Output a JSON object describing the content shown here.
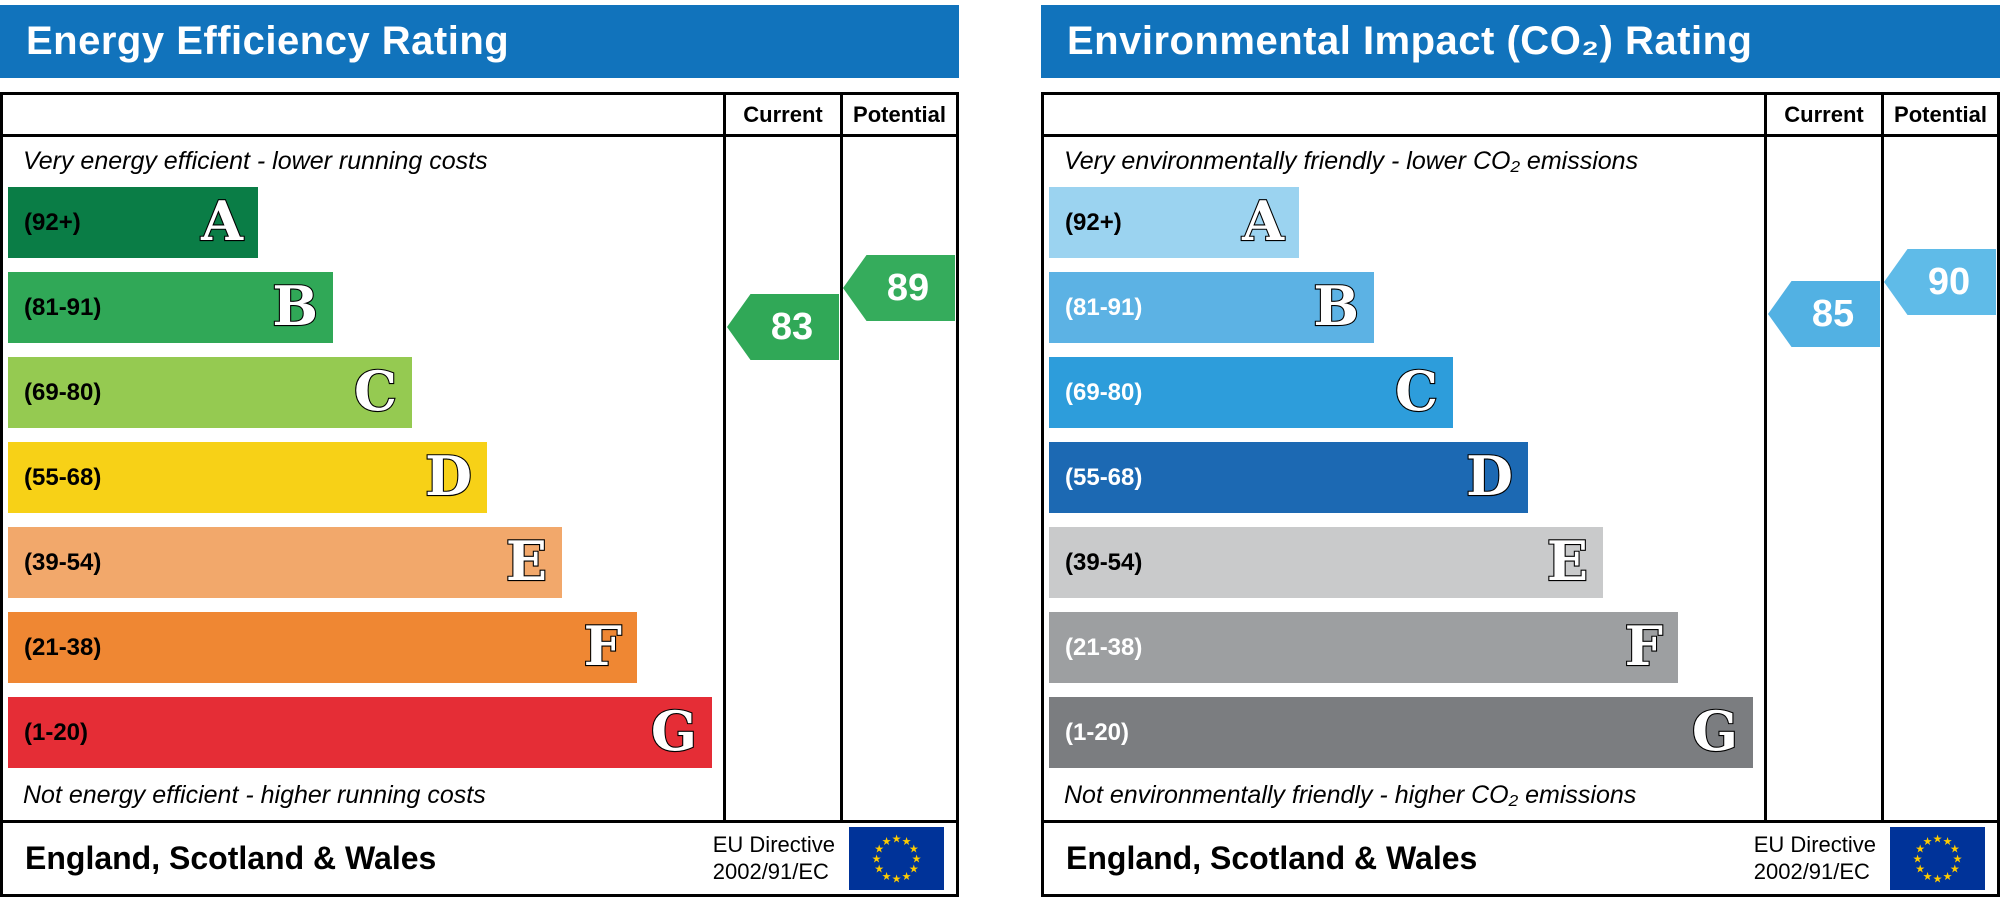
{
  "chart_data": [
    {
      "type": "bar",
      "title": "Energy Efficiency Rating",
      "columns": {
        "current": "Current",
        "potential": "Potential"
      },
      "top_note": "Very energy efficient - lower running costs",
      "bottom_note": "Not energy efficient - higher running costs",
      "footer_region": "England, Scotland & Wales",
      "footer_directive": [
        "EU Directive",
        "2002/91/EC"
      ],
      "header_color": "#1173bc",
      "bands": [
        {
          "letter": "A",
          "range_label": "(92+)",
          "lo": 92,
          "hi": 100,
          "color": "#0a7d46",
          "label_color": "#000000",
          "width_pct": 35
        },
        {
          "letter": "B",
          "range_label": "(81-91)",
          "lo": 81,
          "hi": 91,
          "color": "#30a857",
          "label_color": "#000000",
          "width_pct": 45.5
        },
        {
          "letter": "C",
          "range_label": "(69-80)",
          "lo": 69,
          "hi": 80,
          "color": "#95ca51",
          "label_color": "#000000",
          "width_pct": 56.5
        },
        {
          "letter": "D",
          "range_label": "(55-68)",
          "lo": 55,
          "hi": 68,
          "color": "#f7d117",
          "label_color": "#000000",
          "width_pct": 67
        },
        {
          "letter": "E",
          "range_label": "(39-54)",
          "lo": 39,
          "hi": 54,
          "color": "#f2a86b",
          "label_color": "#000000",
          "width_pct": 77.5
        },
        {
          "letter": "F",
          "range_label": "(21-38)",
          "lo": 21,
          "hi": 38,
          "color": "#ef8733",
          "label_color": "#000000",
          "width_pct": 88
        },
        {
          "letter": "G",
          "range_label": "(1-20)",
          "lo": 1,
          "hi": 20,
          "color": "#e52d36",
          "label_color": "#000000",
          "width_pct": 98.5
        }
      ],
      "current": {
        "value": 83,
        "band": "B",
        "color": "#30a857"
      },
      "potential": {
        "value": 89,
        "band": "B",
        "color": "#35ac5c"
      }
    },
    {
      "type": "bar",
      "title": "Environmental Impact (CO₂) Rating",
      "columns": {
        "current": "Current",
        "potential": "Potential"
      },
      "top_note": "Very environmentally friendly - lower CO₂ emissions",
      "bottom_note": "Not environmentally friendly - higher CO₂ emissions",
      "footer_region": "England, Scotland & Wales",
      "footer_directive": [
        "EU Directive",
        "2002/91/EC"
      ],
      "header_color": "#1173bc",
      "bands": [
        {
          "letter": "A",
          "range_label": "(92+)",
          "lo": 92,
          "hi": 100,
          "color": "#9bd3f0",
          "label_color": "#000000",
          "width_pct": 35
        },
        {
          "letter": "B",
          "range_label": "(81-91)",
          "lo": 81,
          "hi": 91,
          "color": "#5cb2e4",
          "label_color": "#ffffff",
          "width_pct": 45.5
        },
        {
          "letter": "C",
          "range_label": "(69-80)",
          "lo": 69,
          "hi": 80,
          "color": "#2d9ddb",
          "label_color": "#ffffff",
          "width_pct": 56.5
        },
        {
          "letter": "D",
          "range_label": "(55-68)",
          "lo": 55,
          "hi": 68,
          "color": "#1c69b3",
          "label_color": "#ffffff",
          "width_pct": 67
        },
        {
          "letter": "E",
          "range_label": "(39-54)",
          "lo": 39,
          "hi": 54,
          "color": "#c9cacb",
          "label_color": "#000000",
          "width_pct": 77.5
        },
        {
          "letter": "F",
          "range_label": "(21-38)",
          "lo": 21,
          "hi": 38,
          "color": "#9d9fa1",
          "label_color": "#ffffff",
          "width_pct": 88
        },
        {
          "letter": "G",
          "range_label": "(1-20)",
          "lo": 1,
          "hi": 20,
          "color": "#7b7d80",
          "label_color": "#ffffff",
          "width_pct": 98.5
        }
      ],
      "current": {
        "value": 85,
        "band": "B",
        "color": "#52b1e3"
      },
      "potential": {
        "value": 90,
        "band": "B",
        "color": "#5fbbe8"
      }
    }
  ]
}
